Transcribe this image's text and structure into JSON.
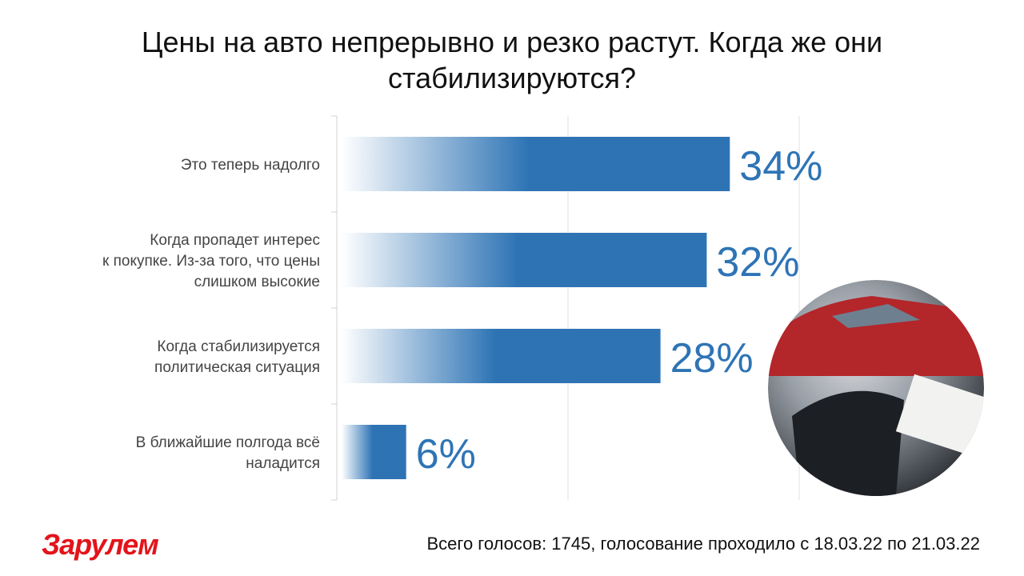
{
  "chart_data": {
    "type": "bar",
    "orientation": "horizontal",
    "title": "Цены на авто непрерывно и резко растут. Когда же они\nстабилизируются?",
    "categories": [
      "Это теперь надолго",
      "Когда пропадет интерес\nк покупке. Из-за того, что цены\nслишком высокие",
      "Когда стабилизируется\nполитическая ситуация",
      "В ближайшие полгода всё\nналадится"
    ],
    "values": [
      34,
      32,
      28,
      6
    ],
    "value_labels": [
      "34%",
      "32%",
      "28%",
      "6%"
    ],
    "color": "#2e74b5",
    "xlim": [
      0,
      40
    ],
    "xticks": [
      0,
      20,
      40
    ],
    "grid": true,
    "show_tick_labels": false,
    "footnote": "Всего голосов: 1745, голосование проходило с 18.03.22 по 21.03.22",
    "logo": "Зарулем"
  }
}
